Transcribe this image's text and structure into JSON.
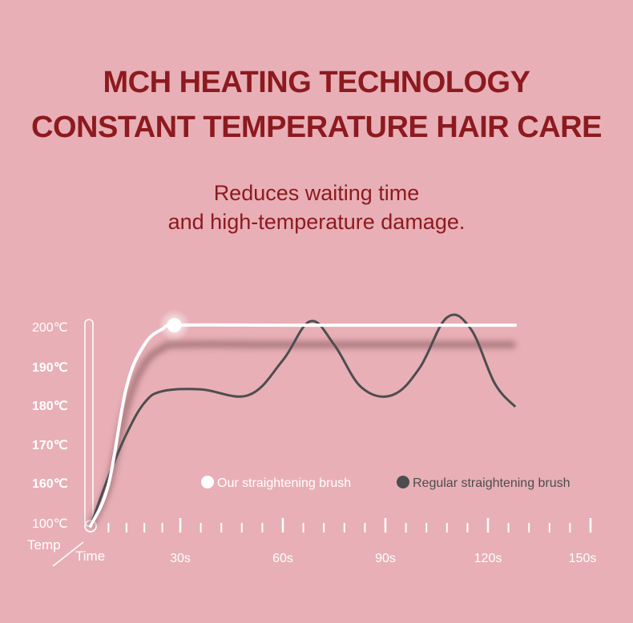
{
  "headline": {
    "line1": "MCH HEATING TECHNOLOGY",
    "line2": "CONSTANT TEMPERATURE HAIR CARE"
  },
  "subheadline": {
    "line1": "Reduces waiting time",
    "line2": "and high-temperature damage."
  },
  "colors": {
    "background": "#e8afb6",
    "headline": "#8c1a1f",
    "our_series": "#ffffff",
    "regular_series": "#4d4d4f"
  },
  "chart_data": {
    "type": "line",
    "xlabel": "Time",
    "ylabel": "Temp",
    "xlim": [
      0,
      150
    ],
    "x_ticks": [
      {
        "value": 30,
        "label": "30s"
      },
      {
        "value": 60,
        "label": "60s"
      },
      {
        "value": 90,
        "label": "90s"
      },
      {
        "value": 120,
        "label": "120s"
      },
      {
        "value": 150,
        "label": "150s"
      }
    ],
    "y_ticks": [
      "100℃",
      "160℃",
      "170℃",
      "180℃",
      "190℃",
      "200℃"
    ],
    "legend_position": "bottom-right",
    "series": [
      {
        "name": "Our straightening brush",
        "color": "#ffffff",
        "points": [
          {
            "x": 0,
            "y": 100
          },
          {
            "x": 6,
            "y": 160
          },
          {
            "x": 12,
            "y": 185
          },
          {
            "x": 18,
            "y": 196
          },
          {
            "x": 24,
            "y": 200
          },
          {
            "x": 30,
            "y": 201
          },
          {
            "x": 60,
            "y": 201
          },
          {
            "x": 90,
            "y": 201
          },
          {
            "x": 120,
            "y": 201
          },
          {
            "x": 128,
            "y": 201
          }
        ]
      },
      {
        "name": "Regular straightening brush",
        "color": "#4d4d4f",
        "points": [
          {
            "x": 0,
            "y": 100
          },
          {
            "x": 6,
            "y": 162
          },
          {
            "x": 12,
            "y": 173
          },
          {
            "x": 18,
            "y": 181
          },
          {
            "x": 24,
            "y": 184
          },
          {
            "x": 36,
            "y": 184.5
          },
          {
            "x": 50,
            "y": 183
          },
          {
            "x": 60,
            "y": 192
          },
          {
            "x": 68,
            "y": 202
          },
          {
            "x": 75,
            "y": 196
          },
          {
            "x": 83,
            "y": 185
          },
          {
            "x": 92,
            "y": 183
          },
          {
            "x": 100,
            "y": 190
          },
          {
            "x": 108,
            "y": 203
          },
          {
            "x": 115,
            "y": 200
          },
          {
            "x": 122,
            "y": 186
          },
          {
            "x": 128,
            "y": 180
          }
        ]
      },
      {
        "name": "",
        "role": "shadow",
        "color": "#9a6a70",
        "points": [
          {
            "x": 0,
            "y": 100
          },
          {
            "x": 6,
            "y": 158
          },
          {
            "x": 12,
            "y": 180
          },
          {
            "x": 18,
            "y": 191
          },
          {
            "x": 24,
            "y": 195
          },
          {
            "x": 30,
            "y": 196
          },
          {
            "x": 60,
            "y": 196
          },
          {
            "x": 90,
            "y": 196
          },
          {
            "x": 120,
            "y": 196
          },
          {
            "x": 128,
            "y": 196
          }
        ]
      }
    ]
  }
}
